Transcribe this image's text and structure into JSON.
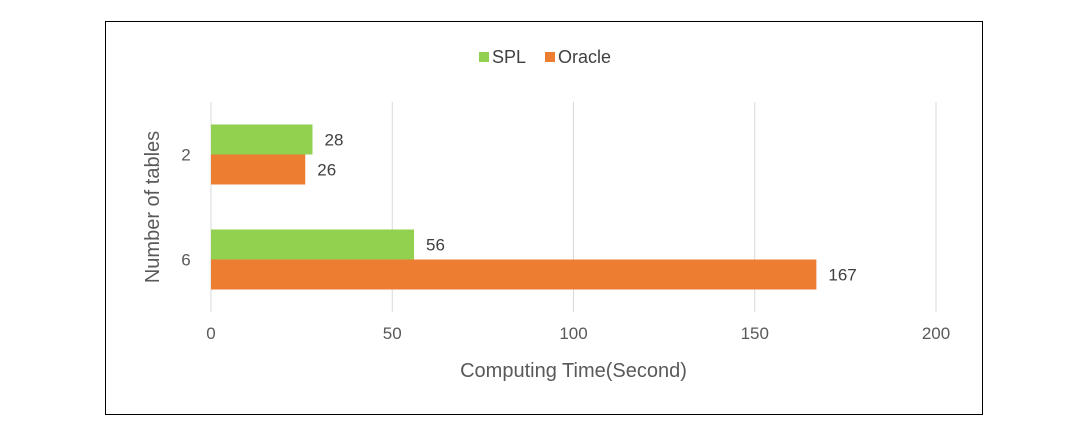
{
  "chart_data": {
    "type": "bar",
    "orientation": "horizontal",
    "categories": [
      "2",
      "6"
    ],
    "series": [
      {
        "name": "SPL",
        "values": [
          28,
          56
        ],
        "color": "#92d050"
      },
      {
        "name": "Oracle",
        "values": [
          26,
          167
        ],
        "color": "#ed7d31"
      }
    ],
    "xlabel": "Computing Time(Second)",
    "ylabel": "Number of tables",
    "xlim": [
      0,
      200
    ],
    "xticks": [
      "0",
      "50",
      "100",
      "150",
      "200"
    ],
    "grid": true,
    "legend": "top-center"
  }
}
